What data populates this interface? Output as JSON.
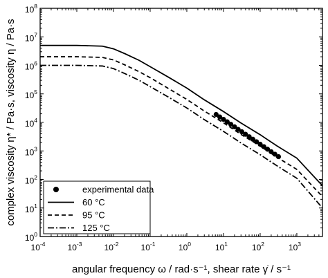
{
  "chart_data": {
    "type": "line",
    "title": "",
    "xlabel": "angular frequency ω / rad·s⁻¹, shear rate γ̇ / s⁻¹",
    "ylabel": "complex viscosity η* / Pa·s, viscosity η / Pa·s",
    "xscale": "log",
    "yscale": "log",
    "xlim": [
      0.0001,
      5000
    ],
    "ylim": [
      1,
      100000000
    ],
    "x_ticks": [
      {
        "base": "10",
        "exp": "-4",
        "value": 0.0001
      },
      {
        "base": "10",
        "exp": "-3",
        "value": 0.001
      },
      {
        "base": "10",
        "exp": "-2",
        "value": 0.01
      },
      {
        "base": "10",
        "exp": "-1",
        "value": 0.1
      },
      {
        "base": "10",
        "exp": "0",
        "value": 1
      },
      {
        "base": "10",
        "exp": "1",
        "value": 10
      },
      {
        "base": "10",
        "exp": "2",
        "value": 100
      },
      {
        "base": "10",
        "exp": "3",
        "value": 1000
      }
    ],
    "y_ticks": [
      {
        "base": "10",
        "exp": "0",
        "value": 1
      },
      {
        "base": "10",
        "exp": "1",
        "value": 10
      },
      {
        "base": "10",
        "exp": "2",
        "value": 100
      },
      {
        "base": "10",
        "exp": "3",
        "value": 1000
      },
      {
        "base": "10",
        "exp": "4",
        "value": 10000
      },
      {
        "base": "10",
        "exp": "5",
        "value": 100000
      },
      {
        "base": "10",
        "exp": "6",
        "value": 1000000
      },
      {
        "base": "10",
        "exp": "7",
        "value": 10000000
      },
      {
        "base": "10",
        "exp": "8",
        "value": 100000000
      }
    ],
    "grid": false,
    "legend_position": "bottom-left",
    "series": [
      {
        "name": "experimental data",
        "style": "markers",
        "color": "#000000",
        "x": [
          6.3,
          7.9,
          10,
          12.6,
          15.8,
          20,
          25.1,
          31.6,
          39.8,
          50.1,
          63.1,
          79.4,
          100,
          125.9,
          158.5,
          199.5,
          251.2,
          316.2
        ],
        "y": [
          19000,
          15500,
          12800,
          10500,
          8600,
          7000,
          5700,
          4700,
          3850,
          3150,
          2580,
          2100,
          1720,
          1410,
          1150,
          940,
          770,
          630
        ]
      },
      {
        "name": "60 °C",
        "style": "solid",
        "color": "#000000",
        "x": [
          0.0001,
          0.001,
          0.005,
          0.01,
          0.02,
          0.05,
          0.1,
          0.3,
          1,
          3,
          10,
          30,
          100,
          300,
          1000,
          5000
        ],
        "y": [
          5000000,
          5000000,
          4700000,
          3800000,
          2600000,
          1500000,
          900000,
          400000,
          160000,
          62000,
          24000,
          9500,
          3700,
          1450,
          560,
          60
        ]
      },
      {
        "name": "95 °C",
        "style": "dashed",
        "color": "#000000",
        "x": [
          0.0001,
          0.001,
          0.005,
          0.01,
          0.02,
          0.05,
          0.1,
          0.3,
          1,
          3,
          10,
          30,
          100,
          300,
          1000,
          5000
        ],
        "y": [
          2000000,
          2000000,
          1900000,
          1550000,
          1050000,
          600000,
          370000,
          160000,
          64000,
          25000,
          9700,
          3800,
          1480,
          580,
          225,
          25
        ]
      },
      {
        "name": "125 °C",
        "style": "dash-dot",
        "color": "#000000",
        "x": [
          0.0001,
          0.001,
          0.005,
          0.01,
          0.02,
          0.05,
          0.1,
          0.3,
          1,
          3,
          10,
          30,
          100,
          300,
          1000,
          5000
        ],
        "y": [
          1000000,
          1000000,
          950000,
          770000,
          520000,
          300000,
          180000,
          80000,
          32000,
          12500,
          4850,
          1900,
          740,
          290,
          110,
          10
        ]
      }
    ]
  }
}
